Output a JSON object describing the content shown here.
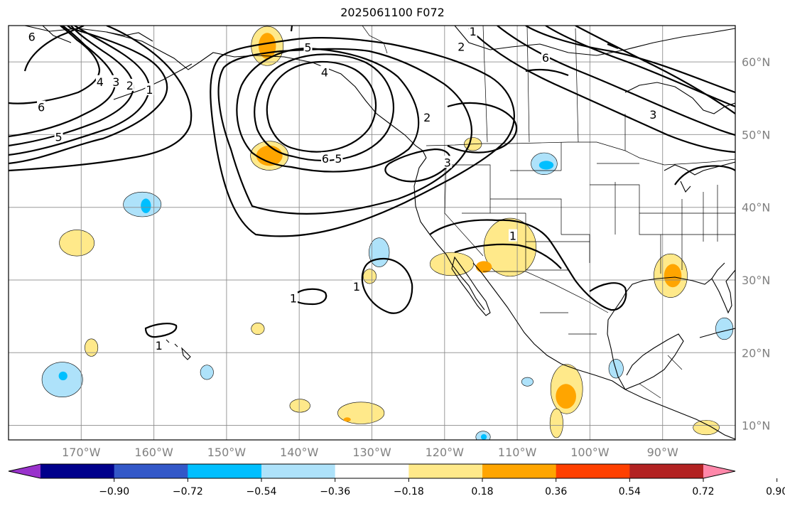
{
  "title": "2025061100 F072",
  "map": {
    "lon_range": [
      -180,
      -80
    ],
    "lat_range": [
      8,
      65
    ],
    "lon_ticks": [
      {
        "lon": -170,
        "label": "170°W"
      },
      {
        "lon": -160,
        "label": "160°W"
      },
      {
        "lon": -150,
        "label": "150°W"
      },
      {
        "lon": -140,
        "label": "140°W"
      },
      {
        "lon": -130,
        "label": "130°W"
      },
      {
        "lon": -120,
        "label": "120°W"
      },
      {
        "lon": -110,
        "label": "110°W"
      },
      {
        "lon": -100,
        "label": "100°W"
      },
      {
        "lon": -90,
        "label": "90°W"
      }
    ],
    "lat_ticks": [
      {
        "lat": 10,
        "label": "10°N"
      },
      {
        "lat": 20,
        "label": "20°N"
      },
      {
        "lat": 30,
        "label": "30°N"
      },
      {
        "lat": 40,
        "label": "40°N"
      },
      {
        "lat": 50,
        "label": "50°N"
      },
      {
        "lat": 60,
        "label": "60°N"
      }
    ]
  },
  "colorbar": {
    "ticks": [
      "−0.90",
      "−0.72",
      "−0.54",
      "−0.36",
      "−0.18",
      "0.18",
      "0.36",
      "0.54",
      "0.72",
      "0.90"
    ],
    "under_color": "#9932cc",
    "over_color": "#ff88aa",
    "colors": [
      "#00008b",
      "#3358c8",
      "#00bfff",
      "#aee2fa",
      "#ffffff",
      "#ffe98a",
      "#ffa500",
      "#ff4000",
      "#b22222"
    ]
  },
  "shading": [
    {
      "lon": -144.4,
      "lat": 62.2,
      "rx": 2.2,
      "ry": 2.7,
      "level": "pos1"
    },
    {
      "lon": -144.4,
      "lat": 62.2,
      "rx": 1.2,
      "ry": 1.8,
      "level": "pos2"
    },
    {
      "lon": -144.1,
      "lat": 47.1,
      "rx": 2.6,
      "ry": 2.0,
      "level": "pos1"
    },
    {
      "lon": -144.1,
      "lat": 47.1,
      "rx": 1.8,
      "ry": 1.4,
      "level": "pos2"
    },
    {
      "lon": -170.6,
      "lat": 35.1,
      "rx": 2.4,
      "ry": 1.8,
      "level": "pos1"
    },
    {
      "lon": -161.6,
      "lat": 40.4,
      "rx": 2.6,
      "ry": 1.7,
      "level": "neg1"
    },
    {
      "lon": -161.1,
      "lat": 40.2,
      "rx": 0.7,
      "ry": 1.0,
      "level": "neg2"
    },
    {
      "lon": -116.1,
      "lat": 48.7,
      "rx": 1.2,
      "ry": 0.9,
      "level": "pos1"
    },
    {
      "lon": -106.3,
      "lat": 46.0,
      "rx": 1.8,
      "ry": 1.5,
      "level": "neg1"
    },
    {
      "lon": -106.0,
      "lat": 45.8,
      "rx": 1.0,
      "ry": 0.6,
      "level": "neg2"
    },
    {
      "lon": -129.0,
      "lat": 33.8,
      "rx": 1.4,
      "ry": 2.0,
      "level": "neg1"
    },
    {
      "lon": -130.3,
      "lat": 30.5,
      "rx": 0.9,
      "ry": 1.0,
      "level": "pos1"
    },
    {
      "lon": -111.0,
      "lat": 34.5,
      "rx": 3.6,
      "ry": 4.0,
      "level": "pos1"
    },
    {
      "lon": -119.0,
      "lat": 32.2,
      "rx": 3.0,
      "ry": 1.6,
      "level": "pos1"
    },
    {
      "lon": -114.6,
      "lat": 31.8,
      "rx": 1.1,
      "ry": 0.8,
      "level": "pos2"
    },
    {
      "lon": -88.9,
      "lat": 30.6,
      "rx": 2.3,
      "ry": 3.0,
      "level": "pos1"
    },
    {
      "lon": -88.6,
      "lat": 30.6,
      "rx": 1.2,
      "ry": 1.6,
      "level": "pos2"
    },
    {
      "lon": -81.5,
      "lat": 23.3,
      "rx": 1.2,
      "ry": 1.5,
      "level": "neg1"
    },
    {
      "lon": -103.2,
      "lat": 15.0,
      "rx": 2.2,
      "ry": 3.4,
      "level": "pos1"
    },
    {
      "lon": -104.6,
      "lat": 10.3,
      "rx": 0.9,
      "ry": 2.0,
      "level": "pos1"
    },
    {
      "lon": -103.3,
      "lat": 14.0,
      "rx": 1.4,
      "ry": 1.7,
      "level": "pos2"
    },
    {
      "lon": -96.4,
      "lat": 17.8,
      "rx": 1.0,
      "ry": 1.3,
      "level": "neg1"
    },
    {
      "lon": -108.6,
      "lat": 16.0,
      "rx": 0.8,
      "ry": 0.6,
      "level": "neg1"
    },
    {
      "lon": -145.7,
      "lat": 23.3,
      "rx": 0.9,
      "ry": 0.8,
      "level": "pos1"
    },
    {
      "lon": -168.6,
      "lat": 20.7,
      "rx": 0.9,
      "ry": 1.2,
      "level": "pos1"
    },
    {
      "lon": -172.6,
      "lat": 16.3,
      "rx": 2.8,
      "ry": 2.4,
      "level": "neg1"
    },
    {
      "lon": -172.5,
      "lat": 16.8,
      "rx": 0.6,
      "ry": 0.6,
      "level": "neg2"
    },
    {
      "lon": -152.7,
      "lat": 17.3,
      "rx": 0.9,
      "ry": 1.0,
      "level": "neg1"
    },
    {
      "lon": -139.9,
      "lat": 12.7,
      "rx": 1.4,
      "ry": 0.9,
      "level": "pos1"
    },
    {
      "lon": -131.5,
      "lat": 11.7,
      "rx": 3.2,
      "ry": 1.5,
      "level": "pos1"
    },
    {
      "lon": -133.4,
      "lat": 10.8,
      "rx": 0.5,
      "ry": 0.3,
      "level": "pos2"
    },
    {
      "lon": -114.7,
      "lat": 8.4,
      "rx": 1.0,
      "ry": 0.8,
      "level": "neg1"
    },
    {
      "lon": -114.6,
      "lat": 8.4,
      "rx": 0.4,
      "ry": 0.4,
      "level": "neg2"
    },
    {
      "lon": -84.0,
      "lat": 9.7,
      "rx": 1.8,
      "ry": 1.0,
      "level": "pos1"
    }
  ],
  "contour_labels": [
    {
      "text": "6",
      "lon": -176.8,
      "lat": 63.5
    },
    {
      "text": "1",
      "lon": -116.1,
      "lat": 64.2
    },
    {
      "text": "2",
      "lon": -117.7,
      "lat": 62.1
    },
    {
      "text": "5",
      "lon": -138.8,
      "lat": 62.0
    },
    {
      "text": "6",
      "lon": -106.1,
      "lat": 60.6
    },
    {
      "text": "4",
      "lon": -167.4,
      "lat": 57.3
    },
    {
      "text": "3",
      "lon": -165.2,
      "lat": 57.3
    },
    {
      "text": "2",
      "lon": -163.3,
      "lat": 56.8
    },
    {
      "text": "1",
      "lon": -160.6,
      "lat": 56.2
    },
    {
      "text": "4",
      "lon": -136.5,
      "lat": 58.6
    },
    {
      "text": "6",
      "lon": -175.5,
      "lat": 53.8
    },
    {
      "text": "2",
      "lon": -122.4,
      "lat": 52.4
    },
    {
      "text": "3",
      "lon": -91.3,
      "lat": 52.8
    },
    {
      "text": "5",
      "lon": -173.1,
      "lat": 49.7
    },
    {
      "text": "6",
      "lon": -136.4,
      "lat": 46.7
    },
    {
      "text": "5",
      "lon": -134.6,
      "lat": 46.7
    },
    {
      "text": "3",
      "lon": -119.6,
      "lat": 46.2
    },
    {
      "text": "1",
      "lon": -110.6,
      "lat": 36.1
    },
    {
      "text": "1",
      "lon": -132.1,
      "lat": 29.1
    },
    {
      "text": "1",
      "lon": -140.8,
      "lat": 27.5
    },
    {
      "text": "1",
      "lon": -159.3,
      "lat": 21.0
    }
  ]
}
